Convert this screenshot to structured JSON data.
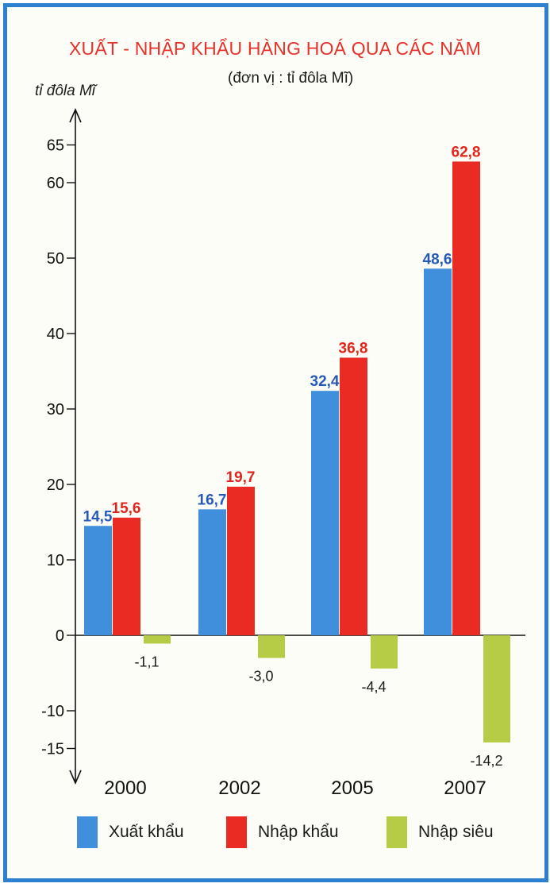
{
  "chart_data": {
    "type": "bar",
    "title": "XUẤT - NHẬP KHẨU HÀNG HOÁ QUA CÁC NĂM",
    "subtitle": "(đơn vị : tỉ đôla Mĩ)",
    "ylabel": "tỉ đôla Mĩ",
    "xlabel": "",
    "categories": [
      "2000",
      "2002",
      "2005",
      "2007"
    ],
    "series": [
      {
        "name": "Xuất khẩu",
        "color": "#3f8fdc",
        "label_color": "#2659b8",
        "values": [
          14.5,
          16.7,
          32.4,
          48.6
        ],
        "labels": [
          "14,5",
          "16,7",
          "32,4",
          "48,6"
        ]
      },
      {
        "name": "Nhập khẩu",
        "color": "#ea2b24",
        "label_color": "#e0251c",
        "values": [
          15.6,
          19.7,
          36.8,
          62.8
        ],
        "labels": [
          "15,6",
          "19,7",
          "36,8",
          "62,8"
        ]
      },
      {
        "name": "Nhập siêu",
        "color": "#b7cc46",
        "label_color": "#1a1a1a",
        "values": [
          -1.1,
          -3.0,
          -4.4,
          -14.2
        ],
        "labels": [
          "-1,1",
          "-3,0",
          "-4,4",
          "-14,2"
        ]
      }
    ],
    "yticks": [
      -15,
      -10,
      0,
      10,
      20,
      30,
      40,
      50,
      60,
      65
    ],
    "ytick_labels": [
      "-15",
      "-10",
      "0",
      "10",
      "20",
      "30",
      "40",
      "50",
      "60",
      "65"
    ],
    "ylim": [
      -15,
      65
    ],
    "grid": false,
    "legend_position": "bottom"
  }
}
